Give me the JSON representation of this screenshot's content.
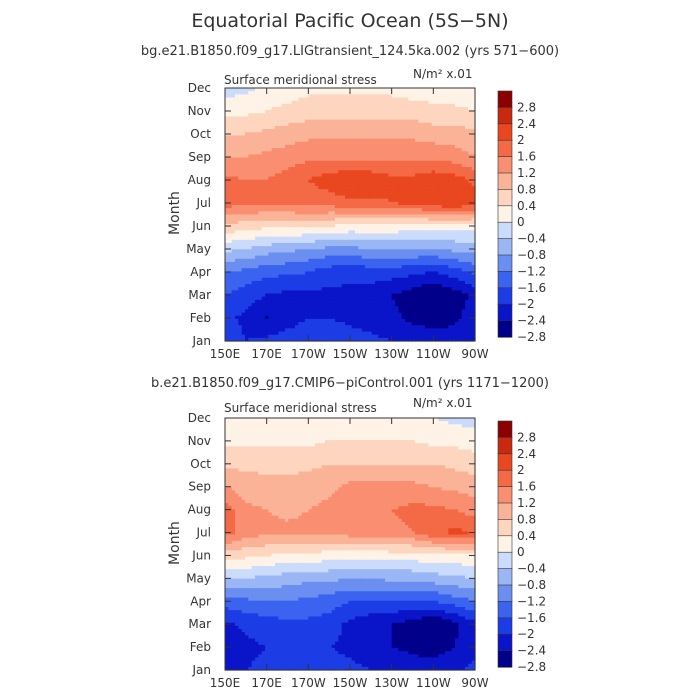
{
  "page": {
    "title": "Equatorial Pacific Ocean (5S−5N)"
  },
  "colors": {
    "levels": [
      "#00008b",
      "#0a14c8",
      "#1c3ce6",
      "#3a64f0",
      "#6a8ff0",
      "#9bb6f5",
      "#cadbfb",
      "#fff3e8",
      "#fed6bf",
      "#fbb398",
      "#f98f70",
      "#f46a47",
      "#e9471f",
      "#c92a0f",
      "#8b0000"
    ]
  },
  "chart_data": [
    {
      "type": "contour",
      "subtitle": "bg.e21.B1850.f09_g17.LIGtransient_124.5ka.002 (yrs 571−600)",
      "variable_label": "Surface meridional stress",
      "units_label": "N/m² x.01",
      "ylabel": "Month",
      "x_ticks": [
        "150E",
        "170E",
        "170W",
        "150W",
        "130W",
        "110W",
        "90W"
      ],
      "y_ticks": [
        "Jan",
        "Feb",
        "Mar",
        "Apr",
        "May",
        "Jun",
        "Jul",
        "Aug",
        "Sep",
        "Oct",
        "Nov",
        "Dec"
      ],
      "colorbar_ticks": [
        "2.8",
        "2.4",
        "2",
        "1.6",
        "1.2",
        "0.8",
        "0.4",
        "0",
        "−0.4",
        "−0.8",
        "−1.2",
        "−1.6",
        "−2",
        "−2.4",
        "−2.8"
      ],
      "contour_levels": [
        -2.8,
        -2.4,
        -2,
        -1.6,
        -1.2,
        -0.8,
        -0.4,
        0,
        0.4,
        0.8,
        1.2,
        1.6,
        2,
        2.4,
        2.8
      ],
      "lon": [
        150,
        160,
        170,
        180,
        190,
        200,
        210,
        220,
        230,
        240,
        250,
        260,
        270
      ],
      "months": [
        1,
        2,
        3,
        4,
        5,
        6,
        7,
        8,
        9,
        10,
        11,
        12
      ],
      "values": [
        [
          -1.7,
          -2.0,
          -1.9,
          -1.8,
          -1.7,
          -1.7,
          -1.8,
          -1.9,
          -2.0,
          -2.1,
          -2.2,
          -2.2,
          -2.0
        ],
        [
          -1.9,
          -2.1,
          -2.45,
          -2.2,
          -2.0,
          -2.0,
          -2.1,
          -2.2,
          -2.3,
          -2.5,
          -2.6,
          -2.5,
          -2.2
        ],
        [
          -1.6,
          -1.8,
          -2.0,
          -2.1,
          -2.1,
          -2.1,
          -2.1,
          -2.2,
          -2.4,
          -2.6,
          -2.85,
          -2.6,
          -2.3
        ],
        [
          -1.2,
          -1.3,
          -1.5,
          -1.5,
          -1.6,
          -1.8,
          -1.9,
          -1.8,
          -1.8,
          -1.9,
          -2.0,
          -1.8,
          -1.5
        ],
        [
          -0.3,
          -0.4,
          -0.6,
          -0.7,
          -0.8,
          -0.9,
          -0.9,
          -0.8,
          -0.8,
          -0.8,
          -0.8,
          -0.7,
          -0.6
        ],
        [
          0.7,
          0.6,
          0.5,
          0.5,
          0.5,
          0.4,
          0.3,
          0.3,
          0.3,
          0.2,
          0.2,
          0.2,
          0.2
        ],
        [
          1.8,
          1.7,
          1.7,
          1.7,
          1.8,
          1.8,
          1.9,
          1.9,
          2.0,
          2.1,
          2.3,
          2.4,
          2.2
        ],
        [
          1.7,
          1.6,
          1.6,
          1.8,
          2.0,
          2.2,
          2.4,
          2.3,
          2.1,
          2.1,
          2.3,
          2.2,
          1.9
        ],
        [
          1.2,
          1.2,
          1.3,
          1.4,
          1.5,
          1.5,
          1.5,
          1.5,
          1.5,
          1.5,
          1.5,
          1.4,
          1.2
        ],
        [
          0.8,
          0.8,
          0.9,
          1.0,
          1.1,
          1.1,
          1.1,
          1.1,
          1.1,
          1.1,
          1.0,
          1.0,
          0.9
        ],
        [
          0.3,
          0.3,
          0.4,
          0.5,
          0.6,
          0.6,
          0.6,
          0.6,
          0.6,
          0.6,
          0.5,
          0.5,
          0.4
        ],
        [
          -0.2,
          -0.1,
          0.1,
          0.2,
          0.3,
          0.3,
          0.3,
          0.3,
          0.3,
          0.2,
          0.2,
          0.1,
          0.1
        ]
      ]
    },
    {
      "type": "contour",
      "subtitle": "b.e21.B1850.f09_g17.CMIP6−piControl.001 (yrs 1171−1200)",
      "variable_label": "Surface meridional stress",
      "units_label": "N/m² x.01",
      "ylabel": "Month",
      "x_ticks": [
        "150E",
        "170E",
        "170W",
        "150W",
        "130W",
        "110W",
        "90W"
      ],
      "y_ticks": [
        "Jan",
        "Feb",
        "Mar",
        "Apr",
        "May",
        "Jun",
        "Jul",
        "Aug",
        "Sep",
        "Oct",
        "Nov",
        "Dec"
      ],
      "colorbar_ticks": [
        "2.8",
        "2.4",
        "2",
        "1.6",
        "1.2",
        "0.8",
        "0.4",
        "0",
        "−0.4",
        "−0.8",
        "−1.2",
        "−1.6",
        "−2",
        "−2.4",
        "−2.8"
      ],
      "contour_levels": [
        -2.8,
        -2.4,
        -2,
        -1.6,
        -1.2,
        -0.8,
        -0.4,
        0,
        0.4,
        0.8,
        1.2,
        1.6,
        2,
        2.4,
        2.8
      ],
      "lon": [
        150,
        160,
        170,
        180,
        190,
        200,
        210,
        220,
        230,
        240,
        250,
        260,
        270
      ],
      "months": [
        1,
        2,
        3,
        4,
        5,
        6,
        7,
        8,
        9,
        10,
        11,
        12
      ],
      "values": [
        [
          -2.1,
          -2.0,
          -1.9,
          -1.8,
          -1.8,
          -1.8,
          -1.9,
          -2.0,
          -2.1,
          -2.2,
          -2.2,
          -2.1,
          -1.9
        ],
        [
          -2.3,
          -2.1,
          -2.0,
          -1.9,
          -1.9,
          -2.0,
          -2.1,
          -2.3,
          -2.4,
          -2.5,
          -2.6,
          -2.4,
          -2.1
        ],
        [
          -2.1,
          -1.9,
          -1.8,
          -1.7,
          -1.7,
          -1.8,
          -2.1,
          -2.3,
          -2.4,
          -2.6,
          -2.85,
          -2.5,
          -2.1
        ],
        [
          -1.4,
          -1.3,
          -1.2,
          -1.2,
          -1.3,
          -1.4,
          -1.6,
          -1.6,
          -1.6,
          -1.6,
          -1.6,
          -1.4,
          -1.2
        ],
        [
          -0.4,
          -0.4,
          -0.5,
          -0.6,
          -0.7,
          -0.7,
          -0.8,
          -0.8,
          -0.7,
          -0.7,
          -0.6,
          -0.5,
          -0.4
        ],
        [
          0.6,
          0.5,
          0.4,
          0.3,
          0.3,
          0.2,
          0.2,
          0.2,
          0.2,
          0.2,
          0.3,
          0.3,
          0.3
        ],
        [
          1.8,
          1.4,
          1.3,
          1.3,
          1.3,
          1.3,
          1.4,
          1.4,
          1.5,
          1.6,
          1.9,
          2.1,
          2.0
        ],
        [
          1.8,
          1.3,
          1.2,
          1.1,
          1.2,
          1.3,
          1.5,
          1.6,
          1.6,
          1.7,
          1.7,
          1.6,
          1.4
        ],
        [
          1.2,
          1.0,
          0.9,
          0.9,
          1.0,
          1.1,
          1.3,
          1.3,
          1.3,
          1.3,
          1.2,
          1.1,
          1.0
        ],
        [
          0.7,
          0.7,
          0.7,
          0.7,
          0.7,
          0.8,
          0.8,
          0.8,
          0.8,
          0.8,
          0.8,
          0.7,
          0.6
        ],
        [
          0.3,
          0.3,
          0.3,
          0.3,
          0.3,
          0.4,
          0.4,
          0.4,
          0.4,
          0.4,
          0.3,
          0.3,
          0.2
        ],
        [
          0.2,
          0.2,
          0.2,
          0.2,
          0.2,
          0.2,
          0.2,
          0.2,
          0.1,
          0.0,
          0.0,
          -0.1,
          -0.2
        ]
      ]
    }
  ]
}
